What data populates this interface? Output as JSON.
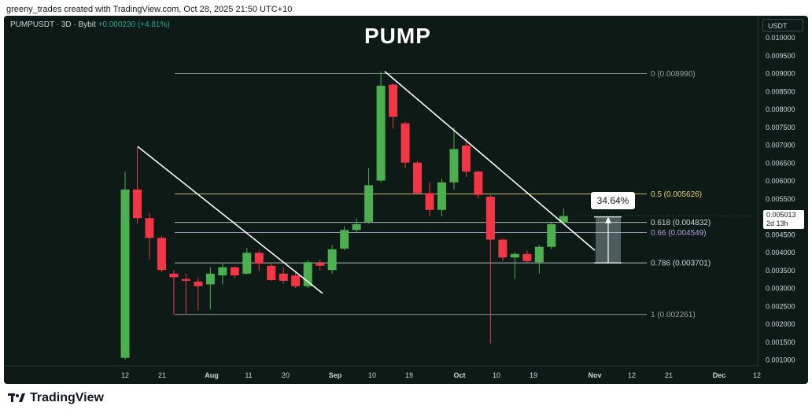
{
  "caption": "greeny_trades created with TradingView.com, Oct 28, 2025 21:50 UTC+10",
  "header": {
    "symbol_info": "PUMPUSDT · 3D · Bybit",
    "change": "+0.000230 (+4.81%)",
    "title": "PUMP",
    "currency": "USDT"
  },
  "price_badge": {
    "price": "0.005013",
    "countdown": "2d 13h"
  },
  "move_label": "34.64%",
  "footer": {
    "brand": "TradingView"
  },
  "colors": {
    "background": "#0d1a16",
    "bull": "#4caf50",
    "bear": "#f23645",
    "trendline": "#ffffff",
    "fib_0": "#9e9e9e",
    "fib_05": "#e8d27a",
    "fib_0618": "#d1d4dc",
    "fib_066": "#b39ddb",
    "fib_0786": "#d1d4dc",
    "fib_1": "#9e9e9e"
  },
  "chart_data": {
    "type": "candlestick",
    "timeframe": "3D",
    "ylim": [
      0.00085,
      0.01048
    ],
    "y_ticks": [
      "0.010000",
      "0.009500",
      "0.009000",
      "0.008500",
      "0.008000",
      "0.007500",
      "0.007000",
      "0.006500",
      "0.006000",
      "0.005500",
      "0.005000",
      "0.004500",
      "0.004000",
      "0.003500",
      "0.003000",
      "0.002500",
      "0.002000",
      "0.001500",
      "0.001000"
    ],
    "x_ticks": [
      "12",
      "21",
      "Aug",
      "11",
      "20",
      "Sep",
      "10",
      "19",
      "Oct",
      "10",
      "19",
      "Nov",
      "12",
      "21",
      "Dec",
      "12"
    ],
    "candles": [
      {
        "date": "Jul 12",
        "o": 0.00105,
        "h": 0.00625,
        "l": 0.001,
        "c": 0.00575
      },
      {
        "date": "Jul 15",
        "o": 0.00575,
        "h": 0.00695,
        "l": 0.0048,
        "c": 0.00495
      },
      {
        "date": "Jul 18",
        "o": 0.00495,
        "h": 0.0051,
        "l": 0.0038,
        "c": 0.0044
      },
      {
        "date": "Jul 21",
        "o": 0.0044,
        "h": 0.00445,
        "l": 0.00345,
        "c": 0.0035
      },
      {
        "date": "Jul 24",
        "o": 0.0034,
        "h": 0.0035,
        "l": 0.00225,
        "c": 0.0033
      },
      {
        "date": "Jul 27",
        "o": 0.00325,
        "h": 0.0034,
        "l": 0.00228,
        "c": 0.0032
      },
      {
        "date": "Jul 30",
        "o": 0.00318,
        "h": 0.0033,
        "l": 0.00238,
        "c": 0.00305
      },
      {
        "date": "Aug 2",
        "o": 0.0031,
        "h": 0.00358,
        "l": 0.0024,
        "c": 0.0034
      },
      {
        "date": "Aug 5",
        "o": 0.00335,
        "h": 0.00368,
        "l": 0.0031,
        "c": 0.00358
      },
      {
        "date": "Aug 8",
        "o": 0.00358,
        "h": 0.0036,
        "l": 0.00328,
        "c": 0.00335
      },
      {
        "date": "Aug 11",
        "o": 0.0034,
        "h": 0.00412,
        "l": 0.00338,
        "c": 0.00398
      },
      {
        "date": "Aug 14",
        "o": 0.00398,
        "h": 0.00405,
        "l": 0.00348,
        "c": 0.00368
      },
      {
        "date": "Aug 17",
        "o": 0.00362,
        "h": 0.00368,
        "l": 0.0032,
        "c": 0.00322
      },
      {
        "date": "Aug 20",
        "o": 0.0034,
        "h": 0.00358,
        "l": 0.00312,
        "c": 0.0032
      },
      {
        "date": "Aug 23",
        "o": 0.00335,
        "h": 0.00348,
        "l": 0.003,
        "c": 0.00305
      },
      {
        "date": "Aug 26",
        "o": 0.00305,
        "h": 0.00378,
        "l": 0.003,
        "c": 0.00372
      },
      {
        "date": "Aug 29",
        "o": 0.0037,
        "h": 0.0038,
        "l": 0.0035,
        "c": 0.00362
      },
      {
        "date": "Sep 1",
        "o": 0.0035,
        "h": 0.0042,
        "l": 0.0034,
        "c": 0.00408
      },
      {
        "date": "Sep 4",
        "o": 0.0041,
        "h": 0.00472,
        "l": 0.00405,
        "c": 0.00462
      },
      {
        "date": "Sep 7",
        "o": 0.00462,
        "h": 0.00495,
        "l": 0.00455,
        "c": 0.00478
      },
      {
        "date": "Sep 10",
        "o": 0.00485,
        "h": 0.00635,
        "l": 0.0048,
        "c": 0.00587
      },
      {
        "date": "Sep 13",
        "o": 0.006,
        "h": 0.00905,
        "l": 0.00595,
        "c": 0.00865
      },
      {
        "date": "Sep 16",
        "o": 0.00868,
        "h": 0.00872,
        "l": 0.00745,
        "c": 0.00778
      },
      {
        "date": "Sep 19",
        "o": 0.0076,
        "h": 0.00765,
        "l": 0.00635,
        "c": 0.0065
      },
      {
        "date": "Sep 22",
        "o": 0.0065,
        "h": 0.00655,
        "l": 0.0056,
        "c": 0.00565
      },
      {
        "date": "Sep 25",
        "o": 0.00565,
        "h": 0.00595,
        "l": 0.005,
        "c": 0.00518
      },
      {
        "date": "Sep 28",
        "o": 0.00518,
        "h": 0.00605,
        "l": 0.005,
        "c": 0.00595
      },
      {
        "date": "Oct 1",
        "o": 0.00595,
        "h": 0.00748,
        "l": 0.00575,
        "c": 0.00688
      },
      {
        "date": "Oct 4",
        "o": 0.00698,
        "h": 0.00718,
        "l": 0.0061,
        "c": 0.00625
      },
      {
        "date": "Oct 7",
        "o": 0.00625,
        "h": 0.00628,
        "l": 0.0055,
        "c": 0.0056
      },
      {
        "date": "Oct 10",
        "o": 0.00555,
        "h": 0.0056,
        "l": 0.00145,
        "c": 0.00435
      },
      {
        "date": "Oct 13",
        "o": 0.00435,
        "h": 0.00438,
        "l": 0.00375,
        "c": 0.00385
      },
      {
        "date": "Oct 16",
        "o": 0.00385,
        "h": 0.004,
        "l": 0.00325,
        "c": 0.00395
      },
      {
        "date": "Oct 19",
        "o": 0.00395,
        "h": 0.00405,
        "l": 0.0037,
        "c": 0.00375
      },
      {
        "date": "Oct 22",
        "o": 0.00372,
        "h": 0.0042,
        "l": 0.0034,
        "c": 0.00415
      },
      {
        "date": "Oct 25",
        "o": 0.00415,
        "h": 0.00482,
        "l": 0.00408,
        "c": 0.00478
      },
      {
        "date": "Oct 28",
        "o": 0.00482,
        "h": 0.00522,
        "l": 0.00478,
        "c": 0.00501
      }
    ],
    "fib_levels": [
      {
        "ratio": 0,
        "label": "0 (0.008990)",
        "price": 0.00899,
        "color_key": "fib_0"
      },
      {
        "ratio": 0.5,
        "label": "0.5 (0.005626)",
        "price": 0.005626,
        "color_key": "fib_05"
      },
      {
        "ratio": 0.618,
        "label": "0.618 (0.004832)",
        "price": 0.004832,
        "color_key": "fib_0618"
      },
      {
        "ratio": 0.66,
        "label": "0.66 (0.004549)",
        "price": 0.004549,
        "color_key": "fib_066"
      },
      {
        "ratio": 0.786,
        "label": "0.786 (0.003701)",
        "price": 0.003701,
        "color_key": "fib_0786"
      },
      {
        "ratio": 1,
        "label": "1 (0.002261)",
        "price": 0.002261,
        "color_key": "fib_1"
      }
    ],
    "trendlines": [
      {
        "from": {
          "date": "Jul 15",
          "price": 0.00695
        },
        "to": {
          "date": "Aug 26",
          "price": 0.00285
        }
      },
      {
        "from": {
          "date": "Sep 13",
          "price": 0.00905
        },
        "to": {
          "date": "Nov 1",
          "price": 0.00405
        }
      }
    ],
    "price_range_measure": {
      "from": 0.003701,
      "to": 0.004985,
      "change": "34.64%"
    }
  }
}
